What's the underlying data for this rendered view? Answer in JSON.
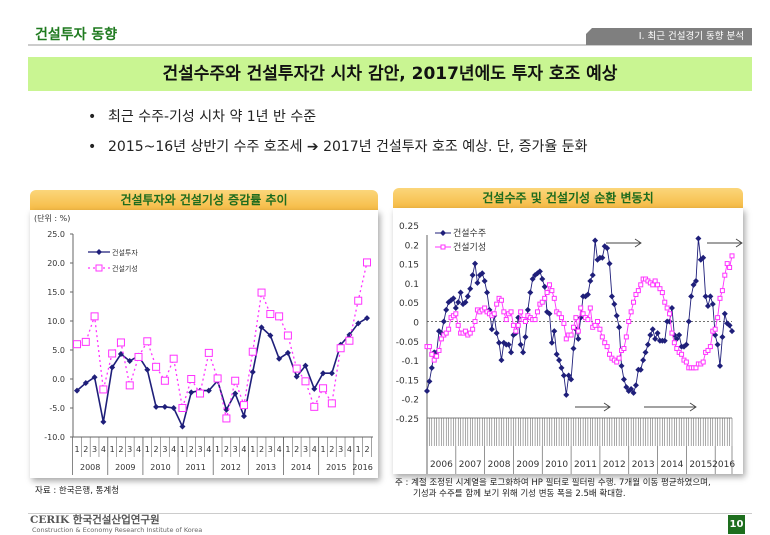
{
  "header": {
    "section_title": "건설투자 동향",
    "chapter_tab": "Ⅰ. 최근 건설경기 동향 분석"
  },
  "banner": {
    "title": "건설수주와 건설투자간 시차 감안, 2017년에도 투자 호조 예상"
  },
  "bullets": [
    {
      "text": "최근 수주-기성 시차 약 1년 반 수준"
    },
    {
      "text": "2015~16년 상반기 수주 호조세 ➔ 2017년 건설투자 호조 예상. 단, 증가율 둔화"
    }
  ],
  "chart_data": [
    {
      "type": "line",
      "title": "건설투자와 건설기성 증감률 추이",
      "unit_label": "(단위 : %)",
      "ylim": [
        -10,
        25
      ],
      "yticks": [
        "25.0",
        "20.0",
        "15.0",
        "10.0",
        "5.0",
        "0.0",
        "-5.0",
        "-10.0"
      ],
      "ytick_values": [
        25,
        20,
        15,
        10,
        5,
        0,
        -5,
        -10
      ],
      "quarters": [
        "1",
        "2",
        "3",
        "4",
        "1",
        "2",
        "3",
        "4",
        "1",
        "2",
        "3",
        "4",
        "1",
        "2",
        "3",
        "4",
        "1",
        "2",
        "3",
        "4",
        "1",
        "2",
        "3",
        "4",
        "1",
        "2",
        "3",
        "4",
        "1",
        "2",
        "3",
        "4",
        "1",
        "2"
      ],
      "years": [
        "2008",
        "2009",
        "2010",
        "2011",
        "2012",
        "2013",
        "2014",
        "2015",
        "2016"
      ],
      "legend_position": "top-left",
      "series": [
        {
          "name": "건설투자",
          "color": "#1f1f7a",
          "style": "solid-diamond",
          "values": [
            -2.0,
            -0.7,
            0.3,
            -7.4,
            2.0,
            4.3,
            3.1,
            4.0,
            1.6,
            -4.8,
            -4.8,
            -5.0,
            -8.2,
            -2.3,
            -2.0,
            -2.0,
            -0.3,
            -5.3,
            -2.5,
            -6.4,
            1.2,
            8.9,
            7.5,
            3.5,
            4.5,
            0.4,
            2.3,
            -1.7,
            1.0,
            1.0,
            5.9,
            7.6,
            9.6,
            10.5
          ]
        },
        {
          "name": "건설기성",
          "color": "#ff33ff",
          "style": "dotted-square",
          "values": [
            6.0,
            6.4,
            10.8,
            -1.8,
            4.4,
            6.3,
            -1.1,
            3.8,
            6.5,
            2.1,
            -0.3,
            3.5,
            -5.0,
            0.0,
            -2.5,
            4.5,
            0.1,
            -6.8,
            -0.3,
            -4.5,
            4.7,
            14.9,
            11.2,
            10.8,
            7.5,
            1.8,
            -0.4,
            -4.8,
            -1.6,
            -4.2,
            5.3,
            6.6,
            13.5,
            20.1
          ]
        }
      ],
      "source": "자료 : 한국은행, 통계청"
    },
    {
      "type": "line",
      "title": "건설수주 및 건설기성 순환 변동치",
      "ylim": [
        -0.25,
        0.25
      ],
      "yticks": [
        "0.25",
        "0.2",
        "0.15",
        "0.1",
        "0.05",
        "0",
        "-0.05",
        "-0.1",
        "-0.15",
        "-0.2",
        "-0.25"
      ],
      "ytick_values": [
        0.25,
        0.2,
        0.15,
        0.1,
        0.05,
        0,
        -0.05,
        -0.1,
        -0.15,
        -0.2,
        -0.25
      ],
      "years": [
        "2006",
        "2007",
        "2008",
        "2009",
        "2010",
        "2011",
        "2012",
        "2013",
        "2014",
        "2015",
        "2016"
      ],
      "x_frequency": "monthly from 2006-01",
      "legend_position": "top-left",
      "series": [
        {
          "name": "건설수주",
          "color": "#1f1f7a",
          "values": [
            -0.18,
            -0.155,
            -0.12,
            -0.08,
            -0.08,
            -0.025,
            -0.03,
            0,
            0.03,
            0.05,
            0.055,
            0.06,
            0.035,
            0.05,
            0.075,
            0.045,
            0.05,
            0.065,
            0.085,
            0.12,
            0.15,
            0.1,
            0.12,
            0.125,
            0.105,
            0.075,
            0.03,
            -0.02,
            0.015,
            -0.03,
            -0.055,
            -0.1,
            -0.055,
            -0.06,
            -0.06,
            -0.08,
            -0.035,
            -0.03,
            0.01,
            -0.06,
            -0.08,
            -0.04,
            0.03,
            0.075,
            0.11,
            0.12,
            0.125,
            0.13,
            0.11,
            0.09,
            0.025,
            0.02,
            -0.055,
            -0.025,
            -0.085,
            -0.1,
            -0.12,
            -0.14,
            -0.19,
            -0.14,
            -0.15,
            -0.07,
            -0.02,
            -0.045,
            0.01,
            0.065,
            0.065,
            0.07,
            0.105,
            0.12,
            0.21,
            0.16,
            0.165,
            0.165,
            0.195,
            0.19,
            0.15,
            0.065,
            0.045,
            0.015,
            -0.015,
            -0.115,
            -0.15,
            -0.17,
            -0.18,
            -0.175,
            -0.185,
            -0.165,
            -0.125,
            -0.125,
            -0.1,
            -0.08,
            -0.06,
            -0.035,
            -0.02,
            -0.045,
            -0.03,
            -0.05,
            -0.05,
            -0.05,
            0,
            0,
            0.035,
            -0.035,
            -0.045,
            -0.035,
            -0.065,
            -0.065,
            -0.06,
            0,
            0.065,
            0.095,
            0.105,
            0.215,
            0.16,
            0.165,
            0.065,
            0.04,
            0.065,
            0.045,
            -0.035,
            -0.06,
            -0.115,
            -0.04,
            0.02,
            -0.005,
            -0.01,
            -0.025
          ]
        },
        {
          "name": "건설기성",
          "color": "#ff33ff",
          "values": [
            -0.065,
            -0.065,
            -0.085,
            -0.1,
            -0.09,
            -0.075,
            -0.045,
            -0.035,
            -0.03,
            -0.02,
            0.01,
            0.015,
            0.02,
            -0.01,
            -0.03,
            -0.03,
            -0.025,
            -0.035,
            -0.03,
            -0.02,
            0,
            0.03,
            0.025,
            0.03,
            0.035,
            0.025,
            0.02,
            0.015,
            0.02,
            0.045,
            0.06,
            0.055,
            0.025,
            0.005,
            0.02,
            0.025,
            -0.01,
            -0.025,
            -0.01,
            0.025,
            0.005,
            0,
            0.015,
            0.01,
            0.005,
            0.005,
            0.025,
            0.045,
            0.05,
            0.06,
            0.075,
            0.095,
            0.08,
            0.06,
            0.025,
            0.02,
            0.01,
            -0.005,
            -0.045,
            -0.035,
            -0.035,
            -0.015,
            0.01,
            -0.025,
            0.035,
            0.02,
            0.01,
            0.005,
            0.035,
            -0.015,
            -0.01,
            0,
            -0.02,
            -0.04,
            -0.055,
            -0.065,
            -0.085,
            -0.095,
            -0.1,
            -0.105,
            -0.095,
            -0.075,
            -0.07,
            -0.04,
            0,
            0.025,
            0.05,
            0.07,
            0.08,
            0.095,
            0.11,
            0.11,
            0.105,
            0.1,
            0.095,
            0.105,
            0.095,
            0.085,
            0.075,
            0.05,
            0.035,
            0.02,
            -0.03,
            -0.055,
            -0.07,
            -0.08,
            -0.085,
            -0.1,
            -0.105,
            -0.12,
            -0.12,
            -0.12,
            -0.12,
            -0.11,
            -0.11,
            -0.105,
            -0.08,
            -0.075,
            -0.065,
            -0.025,
            -0.02,
            0.01,
            0.06,
            0.08,
            0.12,
            0.15,
            0.14,
            0.17
          ]
        }
      ],
      "note_line1": "주 : 계절 조정된 시계열을 로그화하여 HP 필터로 필터링 수행. 7개월 이동 평균하였으며,",
      "note_line2": "기성과 수주를 함께 보기 위해 기성 변동 폭을 2.5배 확대함."
    }
  ],
  "footer": {
    "logo_text": "CERIK 한국건설산업연구원",
    "logo_sub": "Construction & Economy Research Institute of Korea",
    "page_number": "10"
  }
}
